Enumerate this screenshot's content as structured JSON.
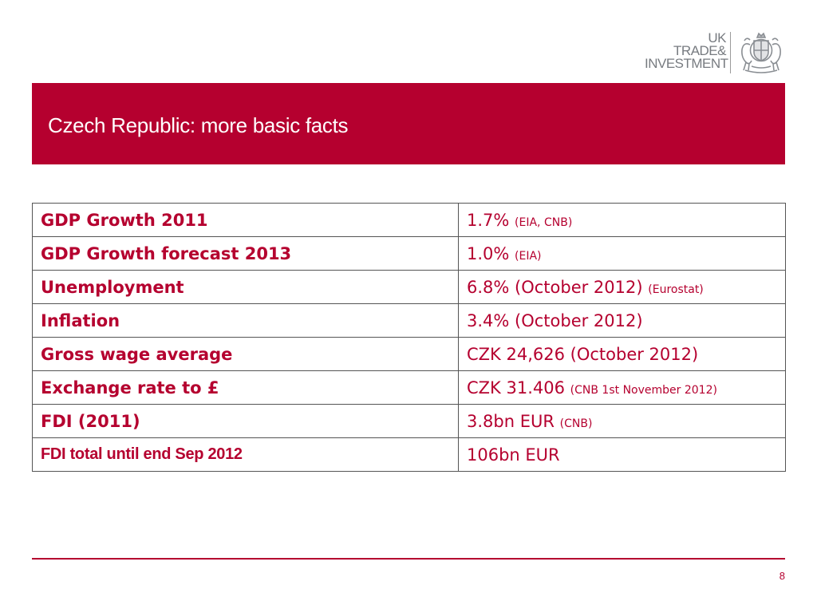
{
  "logo": {
    "line1": "UK",
    "line2": "TRADE&",
    "line3": "INVESTMENT",
    "crest_icon": "royal-coat-of-arms-icon"
  },
  "header": {
    "title": "Czech Republic: more basic facts"
  },
  "facts": [
    {
      "label": "GDP Growth 2011",
      "value": "1.7%",
      "source": "(EIA, CNB)"
    },
    {
      "label": "GDP Growth forecast 2013",
      "value": "1.0%",
      "source": "(EIA)"
    },
    {
      "label": "Unemployment",
      "value": "6.8% (October 2012)",
      "source": "(Eurostat)"
    },
    {
      "label": "Inflation",
      "value": "3.4% (October 2012)",
      "source": ""
    },
    {
      "label": "Gross wage average",
      "value": "CZK 24,626 (October 2012)",
      "source": ""
    },
    {
      "label": "Exchange rate to £",
      "value": "CZK 31.406",
      "source": "(CNB 1st November 2012)"
    },
    {
      "label": "FDI (2011)",
      "value": "3.8bn EUR",
      "source": "(CNB)"
    },
    {
      "label": "FDI total until end Sep 2012",
      "value": "106bn EUR",
      "source": ""
    }
  ],
  "footer": {
    "page_number": "8"
  },
  "colors": {
    "brand_red": "#b5002f",
    "logo_gray": "#777b80"
  }
}
